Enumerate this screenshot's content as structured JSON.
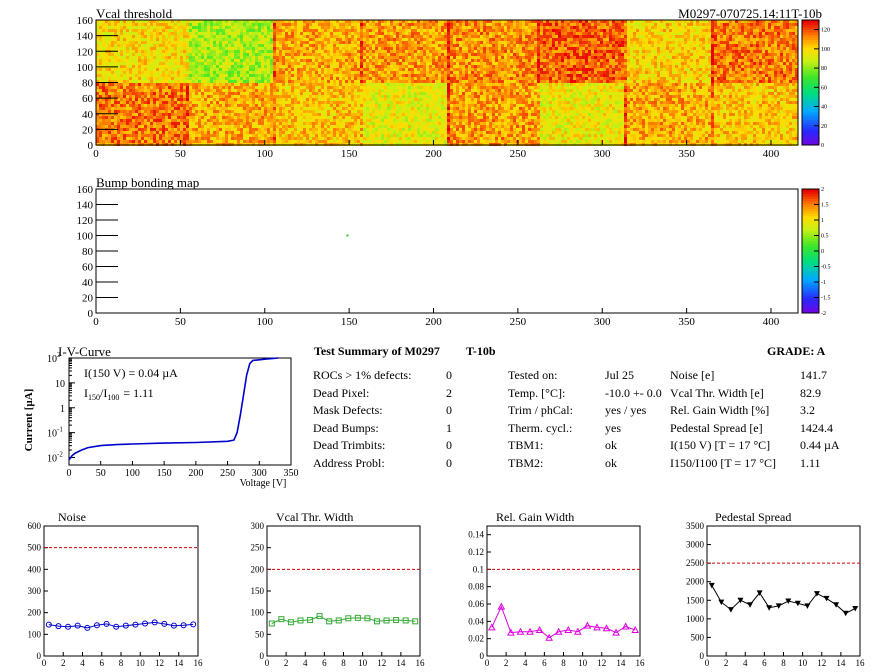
{
  "header": {
    "title": "Vcal threshold",
    "module_id": "M0297-070725.14:11T-10b"
  },
  "bump_title": "Bump bonding map",
  "iv": {
    "title": "I-V-Curve",
    "ylabel": "Current [µA]",
    "xlabel": "Voltage [V]",
    "annotation_i150": "I(150 V) = 0.04 µA",
    "annotation_ratio_label": "I",
    "annotation_ratio_sub1": "150",
    "annotation_ratio_slash": "/I",
    "annotation_ratio_sub2": "100",
    "annotation_ratio_value": "=  1.11"
  },
  "summary": {
    "title": "Test Summary of M0297",
    "variant": "T-10b",
    "grade": "GRADE:  A",
    "left_rows": [
      {
        "label": "ROCs > 1% defects:",
        "value": "0"
      },
      {
        "label": "Dead Pixel:",
        "value": "2"
      },
      {
        "label": "Mask Defects:",
        "value": "0"
      },
      {
        "label": "Dead Bumps:",
        "value": "1"
      },
      {
        "label": "Dead Trimbits:",
        "value": "0"
      },
      {
        "label": "Address Probl:",
        "value": "0"
      }
    ],
    "mid_rows": [
      {
        "label": "Tested on:",
        "value": "Jul 25"
      },
      {
        "label": "Temp. [°C]:",
        "value": "-10.0 +- 0.0"
      },
      {
        "label": "Trim / phCal:",
        "value": "yes / yes"
      },
      {
        "label": "Therm. cycl.:",
        "value": "yes"
      },
      {
        "label": "TBM1:",
        "value": "ok"
      },
      {
        "label": "TBM2:",
        "value": "ok"
      }
    ],
    "right_rows": [
      {
        "label": "Noise [e]",
        "value": "141.7"
      },
      {
        "label": "Vcal Thr. Width [e]",
        "value": "82.9"
      },
      {
        "label": "Rel. Gain Width [%]",
        "value": "3.2"
      },
      {
        "label": "Pedestal Spread [e]",
        "value": "1424.4"
      },
      {
        "label": "I(150 V) [T = 17 °C]",
        "value": "0.44 µA"
      },
      {
        "label": "I150/I100  [T = 17 °C]",
        "value": "1.11"
      }
    ]
  },
  "chart_data": [
    {
      "type": "heatmap",
      "title": "Vcal threshold",
      "xlim": [
        0,
        416
      ],
      "ylim": [
        0,
        160
      ],
      "x_ticks": [
        0,
        50,
        100,
        150,
        200,
        250,
        300,
        350,
        400
      ],
      "y_ticks": [
        0,
        20,
        40,
        60,
        80,
        100,
        120,
        140,
        160
      ],
      "colorbar_ticks": [
        0,
        20,
        40,
        60,
        80,
        100,
        120
      ],
      "z_range": [
        0,
        130
      ],
      "roc_means_top": [
        100,
        85,
        108,
        110,
        112,
        118,
        102,
        115
      ],
      "roc_means_bottom": [
        115,
        108,
        104,
        95,
        110,
        96,
        108,
        104
      ]
    },
    {
      "type": "heatmap",
      "title": "Bump bonding map",
      "xlim": [
        0,
        416
      ],
      "ylim": [
        0,
        160
      ],
      "x_ticks": [
        0,
        50,
        100,
        150,
        200,
        250,
        300,
        350,
        400
      ],
      "y_ticks": [
        0,
        20,
        40,
        60,
        80,
        100,
        120,
        140,
        160
      ],
      "colorbar_ticks": [
        2,
        1.5,
        1,
        0.5,
        0,
        -0.5,
        -1,
        -1.5,
        -2
      ],
      "points": [
        {
          "x": 149,
          "y": 100
        }
      ]
    },
    {
      "type": "line",
      "title": "I-V-Curve",
      "xlabel": "Voltage [V]",
      "ylabel": "Current [µA]",
      "xlim": [
        0,
        350
      ],
      "ylim_log": [
        0.005,
        100
      ],
      "x_ticks": [
        0,
        50,
        100,
        150,
        200,
        250,
        300,
        350
      ],
      "y_ticks": [
        "10^-2",
        "10^-1",
        "1",
        "10",
        "10^2"
      ],
      "x": [
        0,
        5,
        10,
        20,
        30,
        50,
        75,
        100,
        150,
        200,
        250,
        260,
        265,
        270,
        275,
        280,
        285,
        290,
        300,
        310,
        320,
        330
      ],
      "y": [
        0.008,
        0.012,
        0.015,
        0.02,
        0.025,
        0.03,
        0.033,
        0.035,
        0.038,
        0.04,
        0.045,
        0.05,
        0.1,
        0.5,
        3,
        20,
        60,
        80,
        85,
        90,
        95,
        100
      ]
    },
    {
      "type": "line",
      "title": "Noise",
      "xlim": [
        0,
        16
      ],
      "ylim": [
        0,
        600
      ],
      "x_ticks": [
        0,
        2,
        4,
        6,
        8,
        10,
        12,
        14,
        16
      ],
      "y_ticks": [
        0,
        100,
        200,
        300,
        400,
        500,
        600
      ],
      "threshold": 500,
      "color": "#0000cc",
      "marker": "circle",
      "x": [
        0.5,
        1.5,
        2.5,
        3.5,
        4.5,
        5.5,
        6.5,
        7.5,
        8.5,
        9.5,
        10.5,
        11.5,
        12.5,
        13.5,
        14.5,
        15.5
      ],
      "y": [
        145,
        138,
        135,
        140,
        130,
        142,
        148,
        135,
        140,
        145,
        150,
        155,
        148,
        140,
        142,
        146
      ]
    },
    {
      "type": "line",
      "title": "Vcal Thr. Width",
      "xlim": [
        0,
        16
      ],
      "ylim": [
        0,
        300
      ],
      "x_ticks": [
        0,
        2,
        4,
        6,
        8,
        10,
        12,
        14,
        16
      ],
      "y_ticks": [
        0,
        50,
        100,
        150,
        200,
        250,
        300
      ],
      "threshold": 200,
      "color": "#33aa33",
      "marker": "square",
      "x": [
        0.5,
        1.5,
        2.5,
        3.5,
        4.5,
        5.5,
        6.5,
        7.5,
        8.5,
        9.5,
        10.5,
        11.5,
        12.5,
        13.5,
        14.5,
        15.5
      ],
      "y": [
        75,
        85,
        78,
        82,
        83,
        92,
        80,
        82,
        87,
        88,
        87,
        80,
        82,
        83,
        82,
        80
      ]
    },
    {
      "type": "line",
      "title": "Rel. Gain Width",
      "xlim": [
        0,
        16
      ],
      "ylim": [
        0,
        0.15
      ],
      "x_ticks": [
        0,
        2,
        4,
        6,
        8,
        10,
        12,
        14,
        16
      ],
      "y_ticks": [
        0,
        0.02,
        0.04,
        0.06,
        0.08,
        0.1,
        0.12,
        0.14
      ],
      "threshold": 0.1,
      "color": "#dd00dd",
      "marker": "triangle",
      "x": [
        0.5,
        1.5,
        2.5,
        3.5,
        4.5,
        5.5,
        6.5,
        7.5,
        8.5,
        9.5,
        10.5,
        11.5,
        12.5,
        13.5,
        14.5,
        15.5
      ],
      "y": [
        0.033,
        0.057,
        0.027,
        0.028,
        0.028,
        0.03,
        0.021,
        0.028,
        0.03,
        0.028,
        0.035,
        0.033,
        0.032,
        0.027,
        0.034,
        0.03
      ]
    },
    {
      "type": "line",
      "title": "Pedestal Spread",
      "xlim": [
        0,
        16
      ],
      "ylim": [
        0,
        3500
      ],
      "x_ticks": [
        0,
        2,
        4,
        6,
        8,
        10,
        12,
        14,
        16
      ],
      "y_ticks": [
        0,
        500,
        1000,
        1500,
        2000,
        2500,
        3000,
        3500
      ],
      "threshold": 2500,
      "color": "#000000",
      "marker": "triangle-down",
      "x": [
        0.5,
        1.5,
        2.5,
        3.5,
        4.5,
        5.5,
        6.5,
        7.5,
        8.5,
        9.5,
        10.5,
        11.5,
        12.5,
        13.5,
        14.5,
        15.5
      ],
      "y": [
        1900,
        1450,
        1250,
        1500,
        1380,
        1700,
        1300,
        1350,
        1480,
        1420,
        1350,
        1680,
        1550,
        1380,
        1150,
        1280
      ]
    }
  ]
}
